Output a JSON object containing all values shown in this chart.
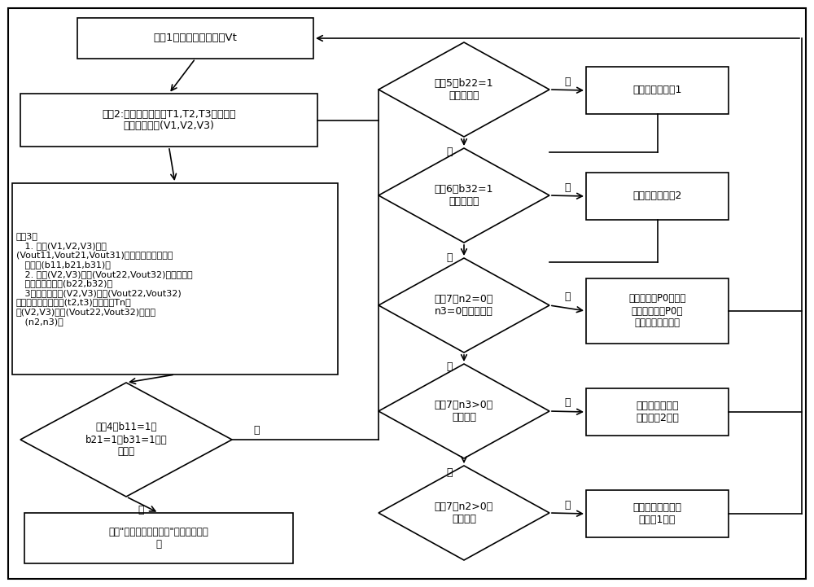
{
  "fig_width": 10.0,
  "fig_height": 7.21,
  "bg_color": "#ffffff",
  "step1_text": "步骤1：采集风速仪信号Vt",
  "step2_text": "步骤2:通过滤波时间为T1,T2,T3的滤波器\n得到滤波结果(V1,V2,V3)",
  "step3_text": "步骤3：\n   1. 判断(V1,V2,V3)大于\n(Vout11,Vout21,Vout31)是否成立，得到一组\n   布尔值(b11,b21,b31)。\n   2. 判断(V2,V3)大于(Vout22,Vout32)是否成立，\n   得到一组布尔值(b22,b32)。\n   3：提取并记录(V2,V3)大于(Vout22,Vout32)\n对应成立持续的时间(t2,t3)；记录前Tn秒\n内(V2,V3)大于(Vout22,Vout32)的次数\n   (n2,n3)。",
  "step4d_text": "步骤4：b11=1或\nb21=1或b31=1是否\n成立？",
  "step4y_text": "触发\"超切出风速安全链\"信号，正常停\n机",
  "step5d_text": "步骤5：b22=1\n是否成立？",
  "step5y_text": "降功率运行控制1",
  "step6d_text": "步骤6：b32=1\n是否成立？",
  "step6y_text": "降功率运行控制2",
  "step7ad_text": "步骤7：n2=0且\nn3=0是否成立？",
  "step7ay_text": "恢复全功率P0运行，\n若现行功率为P0，\n则不改变运行状态",
  "step7bd_text": "步骤7：n3>0是\n否成立？",
  "step7by_text": "继续执行降功率\n运行控制2结果",
  "step7cd_text": "步骤7：n2>0是\n否成立？",
  "step7cy_text": "继续执行降功率运\n行控制1结果",
  "yes_label": "是",
  "no_label": "否"
}
